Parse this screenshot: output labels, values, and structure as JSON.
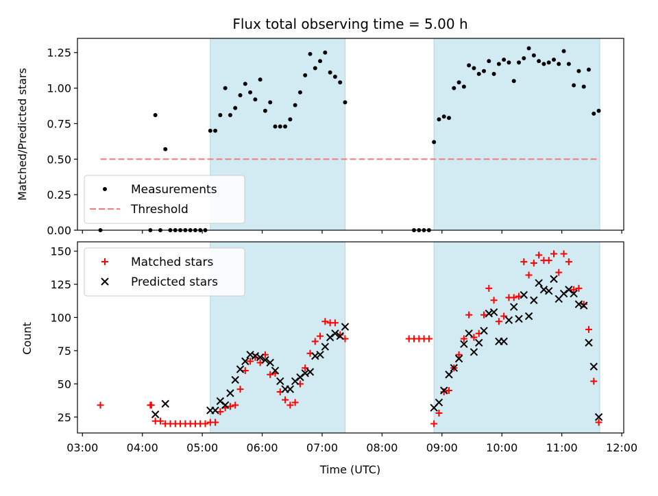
{
  "chart_data": {
    "title": "Flux total observing time = 5.00 h",
    "xlabel": "Time (UTC)",
    "x_ticks": [
      "03:00",
      "04:00",
      "05:00",
      "06:00",
      "07:00",
      "08:00",
      "09:00",
      "10:00",
      "11:00",
      "12:00"
    ],
    "xlim": [
      "02:55",
      "12:02"
    ],
    "shaded_intervals": [
      [
        "05:08",
        "07:23"
      ],
      [
        "08:52",
        "11:38"
      ]
    ],
    "shade_color": "#add8e6",
    "panels": [
      {
        "type": "scatter",
        "ylabel": "Matched/Predicted stars",
        "ylim": [
          0,
          1.35
        ],
        "y_ticks": [
          "0.00",
          "0.25",
          "0.50",
          "0.75",
          "1.00",
          "1.25"
        ],
        "legend_position": "lower left",
        "threshold": {
          "name": "Threshold",
          "value": 0.5,
          "x_range": [
            "03:18",
            "11:38"
          ],
          "color": "#f08080"
        },
        "series": [
          {
            "name": "Measurements",
            "color": "#000000",
            "marker": "dot",
            "points": [
              [
                "03:18",
                0.0
              ],
              [
                "04:08",
                0.0
              ],
              [
                "04:13",
                0.81
              ],
              [
                "04:18",
                0.0
              ],
              [
                "04:23",
                0.57
              ],
              [
                "04:28",
                0.0
              ],
              [
                "04:33",
                0.0
              ],
              [
                "04:38",
                0.0
              ],
              [
                "04:43",
                0.0
              ],
              [
                "04:48",
                0.0
              ],
              [
                "04:53",
                0.0
              ],
              [
                "04:58",
                0.0
              ],
              [
                "05:03",
                0.0
              ],
              [
                "05:08",
                0.7
              ],
              [
                "05:13",
                0.7
              ],
              [
                "05:18",
                0.81
              ],
              [
                "05:23",
                1.0
              ],
              [
                "05:28",
                0.81
              ],
              [
                "05:33",
                0.86
              ],
              [
                "05:38",
                0.95
              ],
              [
                "05:43",
                1.03
              ],
              [
                "05:48",
                0.97
              ],
              [
                "05:53",
                0.92
              ],
              [
                "05:58",
                1.06
              ],
              [
                "06:03",
                0.84
              ],
              [
                "06:08",
                0.9
              ],
              [
                "06:13",
                0.73
              ],
              [
                "06:18",
                0.73
              ],
              [
                "06:23",
                0.73
              ],
              [
                "06:28",
                0.78
              ],
              [
                "06:33",
                0.88
              ],
              [
                "06:38",
                0.97
              ],
              [
                "06:43",
                1.09
              ],
              [
                "06:48",
                1.24
              ],
              [
                "06:53",
                1.14
              ],
              [
                "06:58",
                1.19
              ],
              [
                "07:03",
                1.25
              ],
              [
                "07:08",
                1.11
              ],
              [
                "07:13",
                1.08
              ],
              [
                "07:18",
                1.04
              ],
              [
                "07:23",
                0.9
              ],
              [
                "08:32",
                0.0
              ],
              [
                "08:37",
                0.0
              ],
              [
                "08:42",
                0.0
              ],
              [
                "08:47",
                0.0
              ],
              [
                "08:52",
                0.62
              ],
              [
                "08:57",
                0.78
              ],
              [
                "09:02",
                0.8
              ],
              [
                "09:07",
                0.79
              ],
              [
                "09:12",
                1.0
              ],
              [
                "09:17",
                1.04
              ],
              [
                "09:22",
                1.01
              ],
              [
                "09:27",
                1.16
              ],
              [
                "09:32",
                1.14
              ],
              [
                "09:37",
                1.1
              ],
              [
                "09:42",
                1.12
              ],
              [
                "09:47",
                1.19
              ],
              [
                "09:52",
                1.1
              ],
              [
                "09:57",
                1.17
              ],
              [
                "10:02",
                1.2
              ],
              [
                "10:07",
                1.18
              ],
              [
                "10:12",
                1.05
              ],
              [
                "10:17",
                1.18
              ],
              [
                "10:22",
                1.21
              ],
              [
                "10:27",
                1.28
              ],
              [
                "10:32",
                1.23
              ],
              [
                "10:37",
                1.19
              ],
              [
                "10:42",
                1.17
              ],
              [
                "10:47",
                1.18
              ],
              [
                "10:52",
                1.2
              ],
              [
                "10:57",
                1.17
              ],
              [
                "11:02",
                1.26
              ],
              [
                "11:07",
                1.17
              ],
              [
                "11:12",
                1.02
              ],
              [
                "11:17",
                1.12
              ],
              [
                "11:22",
                1.01
              ],
              [
                "11:27",
                1.13
              ],
              [
                "11:32",
                0.82
              ],
              [
                "11:37",
                0.84
              ]
            ]
          }
        ]
      },
      {
        "type": "scatter",
        "ylabel": "Count",
        "ylim": [
          13,
          157
        ],
        "y_ticks": [
          "25",
          "50",
          "75",
          "100",
          "125",
          "150"
        ],
        "legend_position": "upper left",
        "series": [
          {
            "name": "Matched stars",
            "color": "#ff0000",
            "marker": "plus",
            "points": [
              [
                "03:18",
                34
              ],
              [
                "04:08",
                34
              ],
              [
                "04:09",
                34
              ],
              [
                "04:13",
                22
              ],
              [
                "04:18",
                22
              ],
              [
                "04:23",
                20
              ],
              [
                "04:28",
                20
              ],
              [
                "04:33",
                20
              ],
              [
                "04:38",
                20
              ],
              [
                "04:43",
                20
              ],
              [
                "04:48",
                20
              ],
              [
                "04:53",
                20
              ],
              [
                "04:58",
                20
              ],
              [
                "05:03",
                20
              ],
              [
                "05:08",
                21
              ],
              [
                "05:13",
                21
              ],
              [
                "05:18",
                29
              ],
              [
                "05:23",
                32
              ],
              [
                "05:28",
                33
              ],
              [
                "05:33",
                34
              ],
              [
                "05:38",
                46
              ],
              [
                "05:43",
                60
              ],
              [
                "05:48",
                67
              ],
              [
                "05:53",
                70
              ],
              [
                "05:58",
                66
              ],
              [
                "06:03",
                72
              ],
              [
                "06:08",
                57
              ],
              [
                "06:13",
                58
              ],
              [
                "06:18",
                44
              ],
              [
                "06:23",
                38
              ],
              [
                "06:28",
                34
              ],
              [
                "06:33",
                36
              ],
              [
                "06:38",
                50
              ],
              [
                "06:43",
                62
              ],
              [
                "06:48",
                73
              ],
              [
                "06:53",
                82
              ],
              [
                "06:58",
                86
              ],
              [
                "07:03",
                97
              ],
              [
                "07:08",
                96
              ],
              [
                "07:13",
                96
              ],
              [
                "07:18",
                87
              ],
              [
                "07:23",
                84
              ],
              [
                "08:27",
                84
              ],
              [
                "08:32",
                84
              ],
              [
                "08:37",
                84
              ],
              [
                "08:42",
                84
              ],
              [
                "08:47",
                84
              ],
              [
                "08:52",
                20
              ],
              [
                "08:57",
                28
              ],
              [
                "09:02",
                44
              ],
              [
                "09:07",
                45
              ],
              [
                "09:12",
                62
              ],
              [
                "09:17",
                72
              ],
              [
                "09:22",
                84
              ],
              [
                "09:27",
                102
              ],
              [
                "09:32",
                85
              ],
              [
                "09:37",
                88
              ],
              [
                "09:42",
                102
              ],
              [
                "09:47",
                122
              ],
              [
                "09:52",
                113
              ],
              [
                "09:57",
                97
              ],
              [
                "10:02",
                101
              ],
              [
                "10:07",
                115
              ],
              [
                "10:12",
                115
              ],
              [
                "10:17",
                116
              ],
              [
                "10:22",
                142
              ],
              [
                "10:27",
                132
              ],
              [
                "10:32",
                141
              ],
              [
                "10:37",
                147
              ],
              [
                "10:42",
                143
              ],
              [
                "10:47",
                143
              ],
              [
                "10:52",
                148
              ],
              [
                "10:57",
                134
              ],
              [
                "11:02",
                148
              ],
              [
                "11:07",
                142
              ],
              [
                "11:12",
                121
              ],
              [
                "11:17",
                122
              ],
              [
                "11:22",
                110
              ],
              [
                "11:27",
                91
              ],
              [
                "11:32",
                52
              ],
              [
                "11:37",
                21
              ]
            ]
          },
          {
            "name": "Predicted stars",
            "color": "#000000",
            "marker": "x",
            "points": [
              [
                "04:13",
                27
              ],
              [
                "04:23",
                35
              ],
              [
                "05:08",
                30
              ],
              [
                "05:13",
                30
              ],
              [
                "05:18",
                37
              ],
              [
                "05:23",
                34
              ],
              [
                "05:28",
                43
              ],
              [
                "05:33",
                53
              ],
              [
                "05:38",
                61
              ],
              [
                "05:43",
                67
              ],
              [
                "05:48",
                72
              ],
              [
                "05:53",
                71
              ],
              [
                "05:58",
                70
              ],
              [
                "06:03",
                68
              ],
              [
                "06:08",
                66
              ],
              [
                "06:13",
                60
              ],
              [
                "06:18",
                52
              ],
              [
                "06:23",
                46
              ],
              [
                "06:28",
                46
              ],
              [
                "06:33",
                52
              ],
              [
                "06:38",
                55
              ],
              [
                "06:43",
                58
              ],
              [
                "06:48",
                59
              ],
              [
                "06:53",
                71
              ],
              [
                "06:58",
                72
              ],
              [
                "07:03",
                78
              ],
              [
                "07:08",
                85
              ],
              [
                "07:13",
                88
              ],
              [
                "07:18",
                86
              ],
              [
                "07:23",
                93
              ],
              [
                "08:52",
                32
              ],
              [
                "08:57",
                36
              ],
              [
                "09:02",
                45
              ],
              [
                "09:07",
                57
              ],
              [
                "09:12",
                62
              ],
              [
                "09:17",
                69
              ],
              [
                "09:22",
                80
              ],
              [
                "09:27",
                88
              ],
              [
                "09:32",
                74
              ],
              [
                "09:37",
                81
              ],
              [
                "09:42",
                90
              ],
              [
                "09:47",
                103
              ],
              [
                "09:52",
                104
              ],
              [
                "09:57",
                82
              ],
              [
                "10:02",
                82
              ],
              [
                "10:07",
                98
              ],
              [
                "10:12",
                108
              ],
              [
                "10:17",
                99
              ],
              [
                "10:22",
                117
              ],
              [
                "10:27",
                101
              ],
              [
                "10:32",
                113
              ],
              [
                "10:37",
                126
              ],
              [
                "10:42",
                121
              ],
              [
                "10:47",
                120
              ],
              [
                "10:52",
                129
              ],
              [
                "10:57",
                114
              ],
              [
                "11:02",
                118
              ],
              [
                "11:07",
                121
              ],
              [
                "11:12",
                118
              ],
              [
                "11:17",
                110
              ],
              [
                "11:22",
                109
              ],
              [
                "11:27",
                81
              ],
              [
                "11:32",
                63
              ],
              [
                "11:37",
                25
              ]
            ]
          }
        ]
      }
    ]
  }
}
